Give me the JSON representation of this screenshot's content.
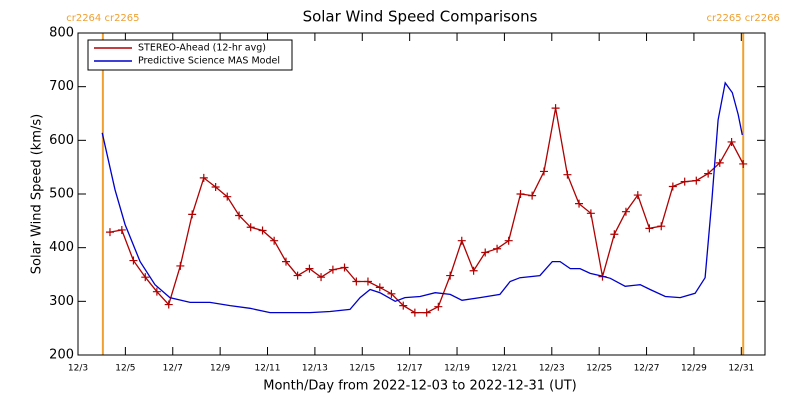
{
  "chart_data": {
    "type": "line",
    "title": "Solar Wind Speed Comparisons",
    "x_label": "Month/Day from 2022-12-03 to 2022-12-31 (UT)",
    "y_label": "Solar Wind Speed (km/s)",
    "xlim": [
      0,
      29
    ],
    "xticks": [
      {
        "value": 0,
        "label": "12/3"
      },
      {
        "value": 2,
        "label": "12/5"
      },
      {
        "value": 4,
        "label": "12/7"
      },
      {
        "value": 6,
        "label": "12/9"
      },
      {
        "value": 8,
        "label": "12/11"
      },
      {
        "value": 10,
        "label": "12/13"
      },
      {
        "value": 12,
        "label": "12/15"
      },
      {
        "value": 14,
        "label": "12/17"
      },
      {
        "value": 16,
        "label": "12/19"
      },
      {
        "value": 18,
        "label": "12/21"
      },
      {
        "value": 20,
        "label": "12/23"
      },
      {
        "value": 22,
        "label": "12/25"
      },
      {
        "value": 24,
        "label": "12/27"
      },
      {
        "value": 26,
        "label": "12/29"
      },
      {
        "value": 28,
        "label": "12/31"
      }
    ],
    "ylim": [
      200,
      800
    ],
    "yticks": [
      200,
      300,
      400,
      500,
      600,
      700,
      800
    ],
    "legend": "upper left",
    "markers": [
      {
        "x": 1.05,
        "label": "cr2264 cr2265",
        "color": "#f0a030"
      },
      {
        "x": 28.08,
        "label": "cr2265 cr2266",
        "color": "#f0a030"
      }
    ],
    "series": [
      {
        "name": "STEREO-Ahead (12-hr avg)",
        "color": "#b00000",
        "marker": "+",
        "x": [
          1.35,
          1.85,
          2.34,
          2.84,
          3.33,
          3.83,
          4.32,
          4.82,
          5.31,
          5.81,
          6.3,
          6.8,
          7.29,
          7.79,
          8.28,
          8.78,
          9.27,
          9.77,
          10.26,
          10.76,
          11.25,
          11.75,
          12.24,
          12.74,
          13.23,
          13.73,
          14.22,
          14.72,
          15.21,
          15.71,
          16.2,
          16.7,
          17.19,
          17.69,
          18.18,
          18.68,
          19.17,
          19.67,
          20.16,
          20.66,
          21.15,
          21.65,
          22.14,
          22.64,
          23.13,
          23.63,
          24.12,
          24.62,
          25.11,
          25.61,
          26.1,
          26.6,
          27.09,
          27.59,
          28.08
        ],
        "values": [
          429,
          433,
          376,
          345,
          318,
          294,
          366,
          462,
          530,
          513,
          495,
          460,
          438,
          432,
          413,
          374,
          348,
          361,
          345,
          359,
          363,
          337,
          337,
          326,
          314,
          292,
          279,
          279,
          290,
          348,
          413,
          357,
          391,
          398,
          413,
          500,
          497,
          542,
          660,
          536,
          482,
          464,
          346,
          425,
          467,
          498,
          436,
          440,
          514,
          523,
          525,
          538,
          558,
          597,
          556
        ]
      },
      {
        "name": "Predictive Science MAS Model",
        "color": "#0000cc",
        "x": [
          1.02,
          1.56,
          1.99,
          2.62,
          3.25,
          3.88,
          4.73,
          5.57,
          6.42,
          7.26,
          8.11,
          8.95,
          9.79,
          10.64,
          11.48,
          11.91,
          12.33,
          12.75,
          13.39,
          13.8,
          14.44,
          15.08,
          15.71,
          16.21,
          16.97,
          17.81,
          18.24,
          18.66,
          19.5,
          20.02,
          20.35,
          20.78,
          21.19,
          21.62,
          22.04,
          22.47,
          23.1,
          23.73,
          24.15,
          24.79,
          25.42,
          26.05,
          26.47,
          26.76,
          27.02,
          27.32,
          27.62,
          27.87,
          28.04
        ],
        "values": [
          614,
          508,
          443,
          374,
          331,
          307,
          298,
          298,
          292,
          287,
          279,
          279,
          279,
          281,
          285,
          307,
          322,
          316,
          300,
          307,
          309,
          316,
          313,
          302,
          307,
          313,
          337,
          344,
          348,
          374,
          374,
          361,
          361,
          352,
          348,
          343,
          328,
          331,
          322,
          309,
          307,
          315,
          344,
          489,
          638,
          707,
          689,
          648,
          610
        ]
      }
    ]
  }
}
